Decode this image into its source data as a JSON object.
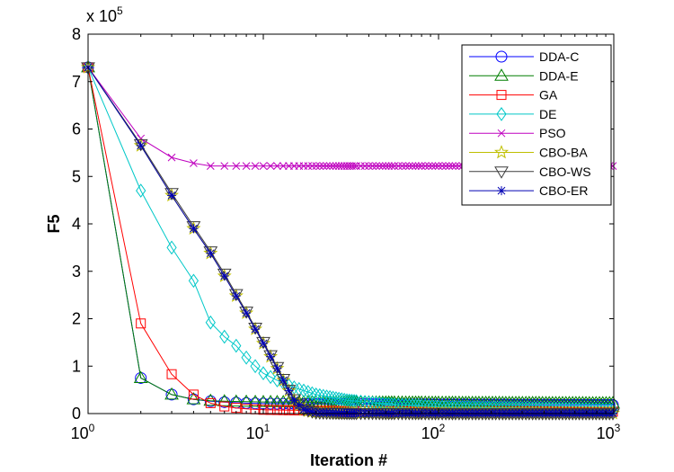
{
  "chart_data": {
    "type": "line",
    "title": "",
    "xlabel": "Iteration #",
    "ylabel": "F5",
    "xscale": "log",
    "xlim": [
      1,
      1000
    ],
    "ylim": [
      0,
      800000
    ],
    "y_multiplier_label": "x 10",
    "y_multiplier_exponent": "5",
    "x_ticks": [
      {
        "base": "10",
        "exp": "0",
        "value": 1
      },
      {
        "base": "10",
        "exp": "1",
        "value": 10
      },
      {
        "base": "10",
        "exp": "2",
        "value": 100
      },
      {
        "base": "10",
        "exp": "3",
        "value": 1000
      }
    ],
    "y_ticks": [
      {
        "label": "0",
        "value": 0
      },
      {
        "label": "1",
        "value": 100000
      },
      {
        "label": "2",
        "value": 200000
      },
      {
        "label": "3",
        "value": 300000
      },
      {
        "label": "4",
        "value": 400000
      },
      {
        "label": "5",
        "value": 500000
      },
      {
        "label": "6",
        "value": 600000
      },
      {
        "label": "7",
        "value": 700000
      },
      {
        "label": "8",
        "value": 800000
      }
    ],
    "grid": false,
    "legend_position": "top-right",
    "series": [
      {
        "name": "DDA-C",
        "color": "#0000ff",
        "marker": "circle",
        "x": [
          1,
          2,
          3,
          4,
          5,
          6,
          8,
          10,
          20,
          50,
          100,
          1000
        ],
        "y": [
          730000,
          75000,
          40000,
          30000,
          26000,
          24000,
          22000,
          21000,
          20000,
          19500,
          19000,
          18000
        ]
      },
      {
        "name": "DDA-E",
        "color": "#007f00",
        "marker": "triangle-up",
        "x": [
          1,
          2,
          3,
          4,
          5,
          6,
          8,
          10,
          20,
          50,
          100,
          1000
        ],
        "y": [
          730000,
          75000,
          40000,
          30000,
          27000,
          26000,
          25000,
          24500,
          24000,
          23500,
          23000,
          22000
        ]
      },
      {
        "name": "GA",
        "color": "#ff0000",
        "marker": "square",
        "x": [
          1,
          2,
          3,
          4,
          5,
          6,
          7,
          8,
          10,
          20,
          50,
          1000
        ],
        "y": [
          730000,
          190000,
          83000,
          40000,
          22000,
          15000,
          12000,
          10000,
          8000,
          6000,
          5000,
          4000
        ]
      },
      {
        "name": "DE",
        "color": "#00c8c8",
        "marker": "diamond",
        "x": [
          1,
          2,
          3,
          4,
          5,
          6,
          7,
          8,
          9,
          10,
          12,
          15,
          20,
          30,
          50,
          100,
          1000
        ],
        "y": [
          730000,
          470000,
          350000,
          280000,
          192000,
          162000,
          143000,
          118000,
          100000,
          85000,
          70000,
          55000,
          40000,
          28000,
          20000,
          14000,
          8000
        ]
      },
      {
        "name": "PSO",
        "color": "#bf00bf",
        "marker": "x",
        "x": [
          1,
          2,
          3,
          4,
          5,
          6,
          8,
          10,
          20,
          50,
          100,
          1000
        ],
        "y": [
          730000,
          580000,
          540000,
          528000,
          522000,
          522000,
          522000,
          522000,
          522000,
          522000,
          522000,
          522000
        ]
      },
      {
        "name": "CBO-BA",
        "color": "#bfbf00",
        "marker": "star",
        "x": [
          1,
          2,
          3,
          4,
          5,
          6,
          7,
          8,
          9,
          10,
          11,
          12,
          13,
          14,
          15,
          17,
          20,
          30,
          100,
          1000
        ],
        "y": [
          730000,
          565000,
          460000,
          390000,
          338000,
          290000,
          248000,
          212000,
          178000,
          148000,
          120000,
          95000,
          70000,
          48000,
          28000,
          8000,
          2000,
          1000,
          500,
          500
        ]
      },
      {
        "name": "CBO-WS",
        "color": "#3c3c3c",
        "marker": "triangle-down",
        "x": [
          1,
          2,
          3,
          4,
          5,
          6,
          7,
          8,
          9,
          10,
          11,
          12,
          13,
          14,
          15,
          17,
          20,
          30,
          100,
          1000
        ],
        "y": [
          730000,
          568000,
          465000,
          395000,
          342000,
          295000,
          252000,
          215000,
          181000,
          151000,
          123000,
          98000,
          73000,
          50000,
          30000,
          9000,
          2000,
          1000,
          500,
          500
        ]
      },
      {
        "name": "CBO-ER",
        "color": "#0000b4",
        "marker": "asterisk",
        "x": [
          1,
          2,
          3,
          4,
          5,
          6,
          7,
          8,
          9,
          10,
          11,
          12,
          13,
          14,
          15,
          17,
          20,
          30,
          100,
          1000
        ],
        "y": [
          730000,
          565000,
          460000,
          390000,
          338000,
          290000,
          248000,
          212000,
          178000,
          148000,
          120000,
          95000,
          70000,
          48000,
          28000,
          8000,
          2000,
          1000,
          500,
          500
        ]
      }
    ]
  }
}
